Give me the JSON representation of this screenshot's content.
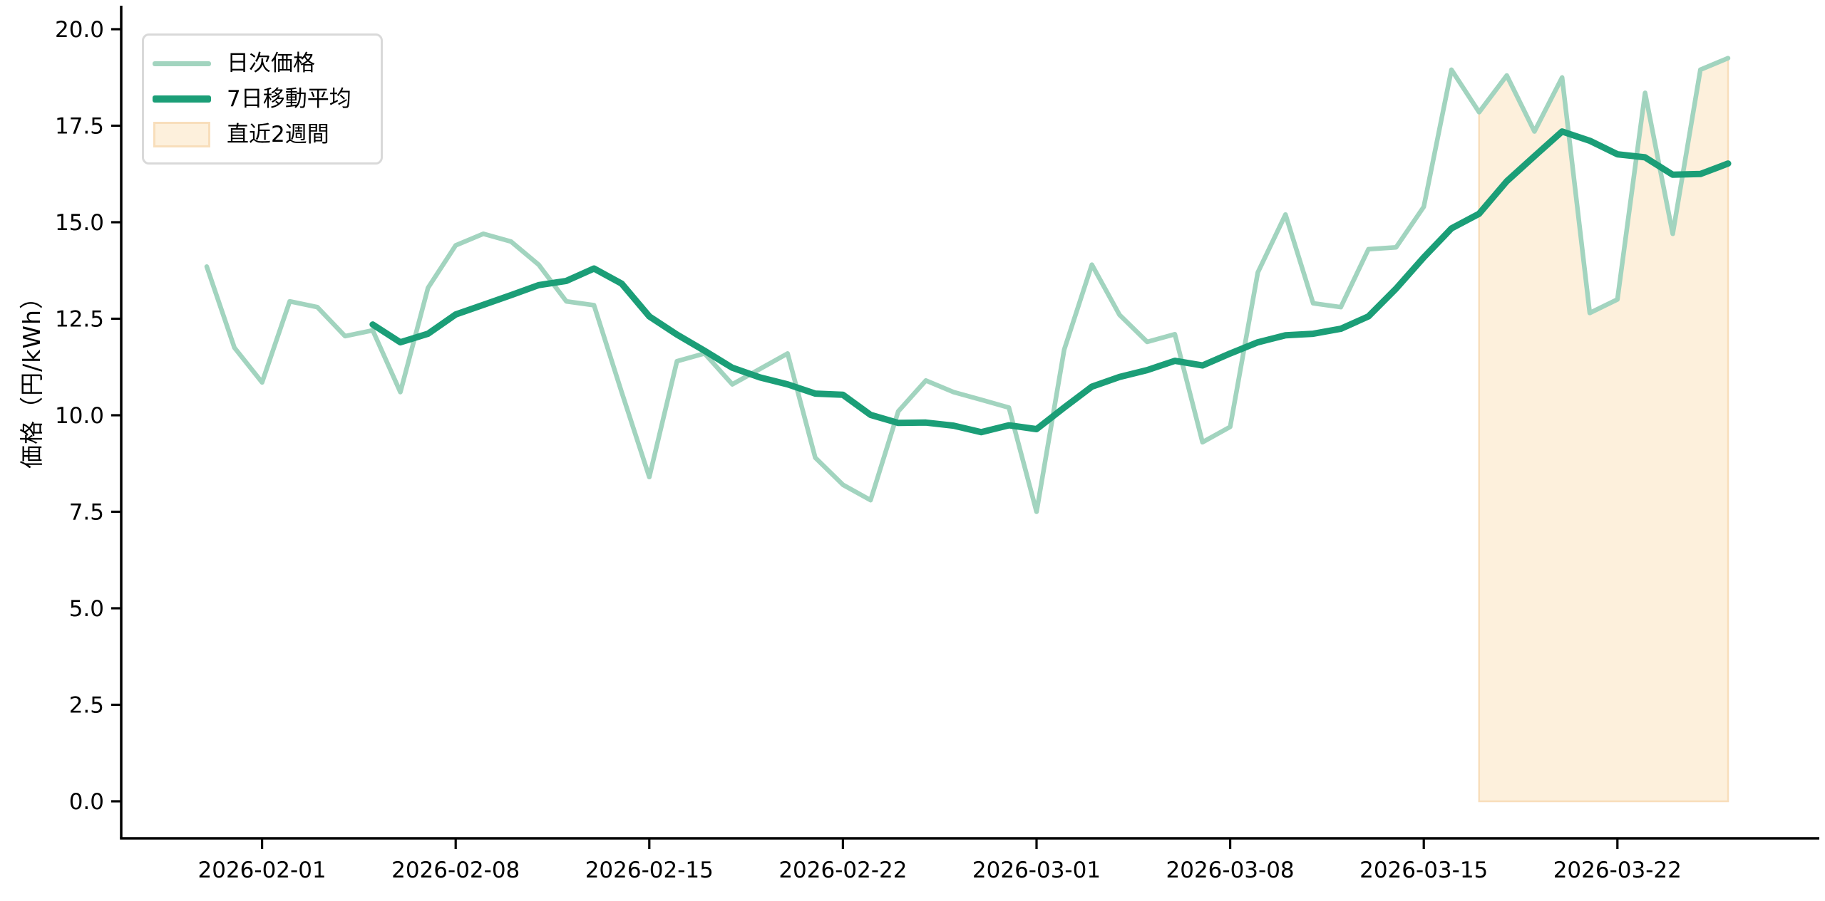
{
  "chart_data": {
    "type": "line",
    "title": "",
    "xlabel": "",
    "ylabel": "価格（円/kWh）",
    "grid": false,
    "legend_position": "upper-left",
    "ylim": [
      -0.96,
      20.5
    ],
    "yticks": [
      "0.0",
      "2.5",
      "5.0",
      "7.5",
      "10.0",
      "12.5",
      "15.0",
      "17.5",
      "20.0"
    ],
    "ytick_values": [
      0,
      2.5,
      5,
      7.5,
      10,
      12.5,
      15,
      17.5,
      20
    ],
    "xtick_labels": [
      "2026-02-01",
      "2026-02-08",
      "2026-02-15",
      "2026-02-22",
      "2026-03-01",
      "2026-03-08",
      "2026-03-15",
      "2026-03-22"
    ],
    "x_dates": [
      "2026-01-30",
      "2026-01-31",
      "2026-02-01",
      "2026-02-02",
      "2026-02-03",
      "2026-02-04",
      "2026-02-05",
      "2026-02-06",
      "2026-02-07",
      "2026-02-08",
      "2026-02-09",
      "2026-02-10",
      "2026-02-11",
      "2026-02-12",
      "2026-02-13",
      "2026-02-14",
      "2026-02-15",
      "2026-02-16",
      "2026-02-17",
      "2026-02-18",
      "2026-02-19",
      "2026-02-20",
      "2026-02-21",
      "2026-02-22",
      "2026-02-23",
      "2026-02-24",
      "2026-02-25",
      "2026-02-26",
      "2026-02-27",
      "2026-02-28",
      "2026-03-01",
      "2026-03-02",
      "2026-03-03",
      "2026-03-04",
      "2026-03-05",
      "2026-03-06",
      "2026-03-07",
      "2026-03-08",
      "2026-03-09",
      "2026-03-10",
      "2026-03-11",
      "2026-03-12",
      "2026-03-13",
      "2026-03-14",
      "2026-03-15",
      "2026-03-16",
      "2026-03-17",
      "2026-03-18",
      "2026-03-19",
      "2026-03-20",
      "2026-03-21",
      "2026-03-22",
      "2026-03-23",
      "2026-03-24",
      "2026-03-25",
      "2026-03-26"
    ],
    "series": [
      {
        "name": "日次価格",
        "color": "#a2d4bf",
        "line_width": 6.5,
        "values": [
          13.85,
          11.75,
          10.85,
          12.95,
          12.8,
          12.05,
          12.2,
          10.6,
          13.3,
          14.4,
          14.7,
          14.5,
          13.9,
          12.95,
          12.85,
          10.6,
          8.4,
          11.4,
          11.6,
          10.8,
          11.2,
          11.6,
          8.9,
          8.2,
          7.8,
          10.1,
          10.9,
          10.6,
          10.4,
          10.2,
          7.5,
          11.7,
          13.9,
          12.6,
          11.9,
          12.1,
          9.3,
          9.7,
          13.7,
          15.2,
          12.9,
          12.8,
          14.3,
          14.35,
          15.4,
          18.95,
          17.85,
          18.8,
          17.35,
          18.75,
          12.65,
          13.0,
          18.35,
          14.7,
          18.95,
          19.25
        ]
      },
      {
        "name": "7日移動平均",
        "color": "#1b9e77",
        "line_width": 9,
        "values": [
          null,
          null,
          null,
          null,
          null,
          null,
          12.35,
          11.89,
          12.11,
          12.61,
          12.86,
          13.11,
          13.37,
          13.48,
          13.8,
          13.41,
          12.56,
          12.09,
          11.67,
          11.23,
          10.98,
          10.8,
          10.56,
          10.53,
          10.01,
          9.8,
          9.81,
          9.73,
          9.56,
          9.74,
          9.64,
          10.2,
          10.74,
          10.99,
          11.17,
          11.41,
          11.29,
          11.6,
          11.89,
          12.07,
          12.11,
          12.24,
          12.56,
          13.28,
          14.09,
          14.84,
          15.22,
          16.06,
          16.71,
          17.35,
          17.11,
          16.76,
          16.68,
          16.23,
          16.25,
          16.52
        ]
      }
    ],
    "highlight_region": {
      "label": "直近2週間",
      "start_date": "2026-03-17",
      "end_date": "2026-03-26",
      "fill_to": 0,
      "fill_color": "#fdf0dc",
      "edge_color": "#f8debb"
    },
    "axis_color": "#000000",
    "legend_border_color": "#d9d9d9"
  }
}
